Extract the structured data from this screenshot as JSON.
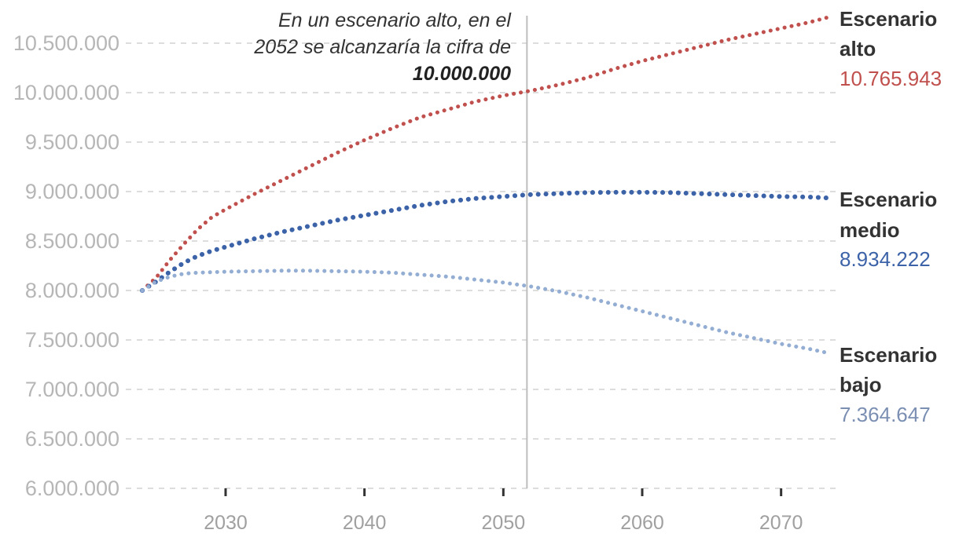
{
  "chart_data": {
    "type": "line",
    "title": "",
    "xlabel": "",
    "ylabel": "",
    "xlim": [
      2023.4,
      2074
    ],
    "ylim": [
      6000000,
      10600000
    ],
    "grid": true,
    "y_ticks": [
      6000000,
      6500000,
      7000000,
      7500000,
      8000000,
      8500000,
      9000000,
      9500000,
      10000000,
      10500000
    ],
    "y_tick_labels": [
      "6.000.000",
      "6.500.000",
      "7.000.000",
      "7.500.000",
      "8.000.000",
      "8.500.000",
      "9.000.000",
      "9.500.000",
      "10.000.000",
      "10.500.000"
    ],
    "x_ticks": [
      2030,
      2040,
      2050,
      2060,
      2070
    ],
    "x_tick_labels": [
      "2030",
      "2040",
      "2050",
      "2060",
      "2070"
    ],
    "annotation": {
      "x": 2051.7,
      "line1": "En un escenario alto, en el",
      "line2": "2052 se alcanzaría la cifra de",
      "line3": "10.000.000"
    },
    "series": [
      {
        "key": "alto",
        "name_line1": "Escenario",
        "name_line2": "alto",
        "final_label": "10.765.943",
        "color": "#c0504d",
        "x": [
          2024,
          2025,
          2026,
          2027,
          2028,
          2029,
          2030,
          2032,
          2034,
          2036,
          2038,
          2040,
          2042,
          2044,
          2046,
          2048,
          2050,
          2052,
          2054,
          2056,
          2058,
          2060,
          2062,
          2064,
          2066,
          2068,
          2070,
          2072,
          2073.5
        ],
        "values": [
          8000000,
          8130000,
          8310000,
          8470000,
          8620000,
          8740000,
          8820000,
          8970000,
          9110000,
          9250000,
          9390000,
          9520000,
          9640000,
          9750000,
          9830000,
          9910000,
          9970000,
          10020000,
          10080000,
          10150000,
          10240000,
          10320000,
          10390000,
          10460000,
          10530000,
          10590000,
          10650000,
          10710000,
          10765943
        ]
      },
      {
        "key": "medio",
        "name_line1": "Escenario",
        "name_line2": "medio",
        "final_label": "8.934.222",
        "color": "#3c63a8",
        "x": [
          2024,
          2025,
          2026,
          2027,
          2028,
          2029,
          2030,
          2032,
          2034,
          2036,
          2038,
          2040,
          2042,
          2044,
          2046,
          2048,
          2050,
          2052,
          2054,
          2056,
          2058,
          2060,
          2062,
          2064,
          2066,
          2068,
          2070,
          2072,
          2073.5
        ],
        "values": [
          8000000,
          8090000,
          8190000,
          8280000,
          8350000,
          8400000,
          8440000,
          8520000,
          8590000,
          8650000,
          8710000,
          8760000,
          8810000,
          8860000,
          8900000,
          8930000,
          8950000,
          8970000,
          8980000,
          8990000,
          8993000,
          8993000,
          8990000,
          8980000,
          8970000,
          8960000,
          8950000,
          8945000,
          8934222
        ]
      },
      {
        "key": "bajo",
        "name_line1": "Escenario",
        "name_line2": "bajo",
        "final_label": "7.364.647",
        "color": "#94aed3",
        "x": [
          2024,
          2025,
          2026,
          2027,
          2028,
          2029,
          2030,
          2032,
          2034,
          2036,
          2038,
          2040,
          2042,
          2044,
          2046,
          2048,
          2050,
          2052,
          2054,
          2056,
          2058,
          2060,
          2062,
          2064,
          2066,
          2068,
          2070,
          2072,
          2073.5
        ],
        "values": [
          8000000,
          8090000,
          8140000,
          8170000,
          8180000,
          8185000,
          8190000,
          8195000,
          8200000,
          8200000,
          8195000,
          8190000,
          8180000,
          8160000,
          8140000,
          8110000,
          8080000,
          8040000,
          7990000,
          7930000,
          7860000,
          7790000,
          7720000,
          7650000,
          7580000,
          7520000,
          7460000,
          7410000,
          7364647
        ]
      }
    ]
  }
}
